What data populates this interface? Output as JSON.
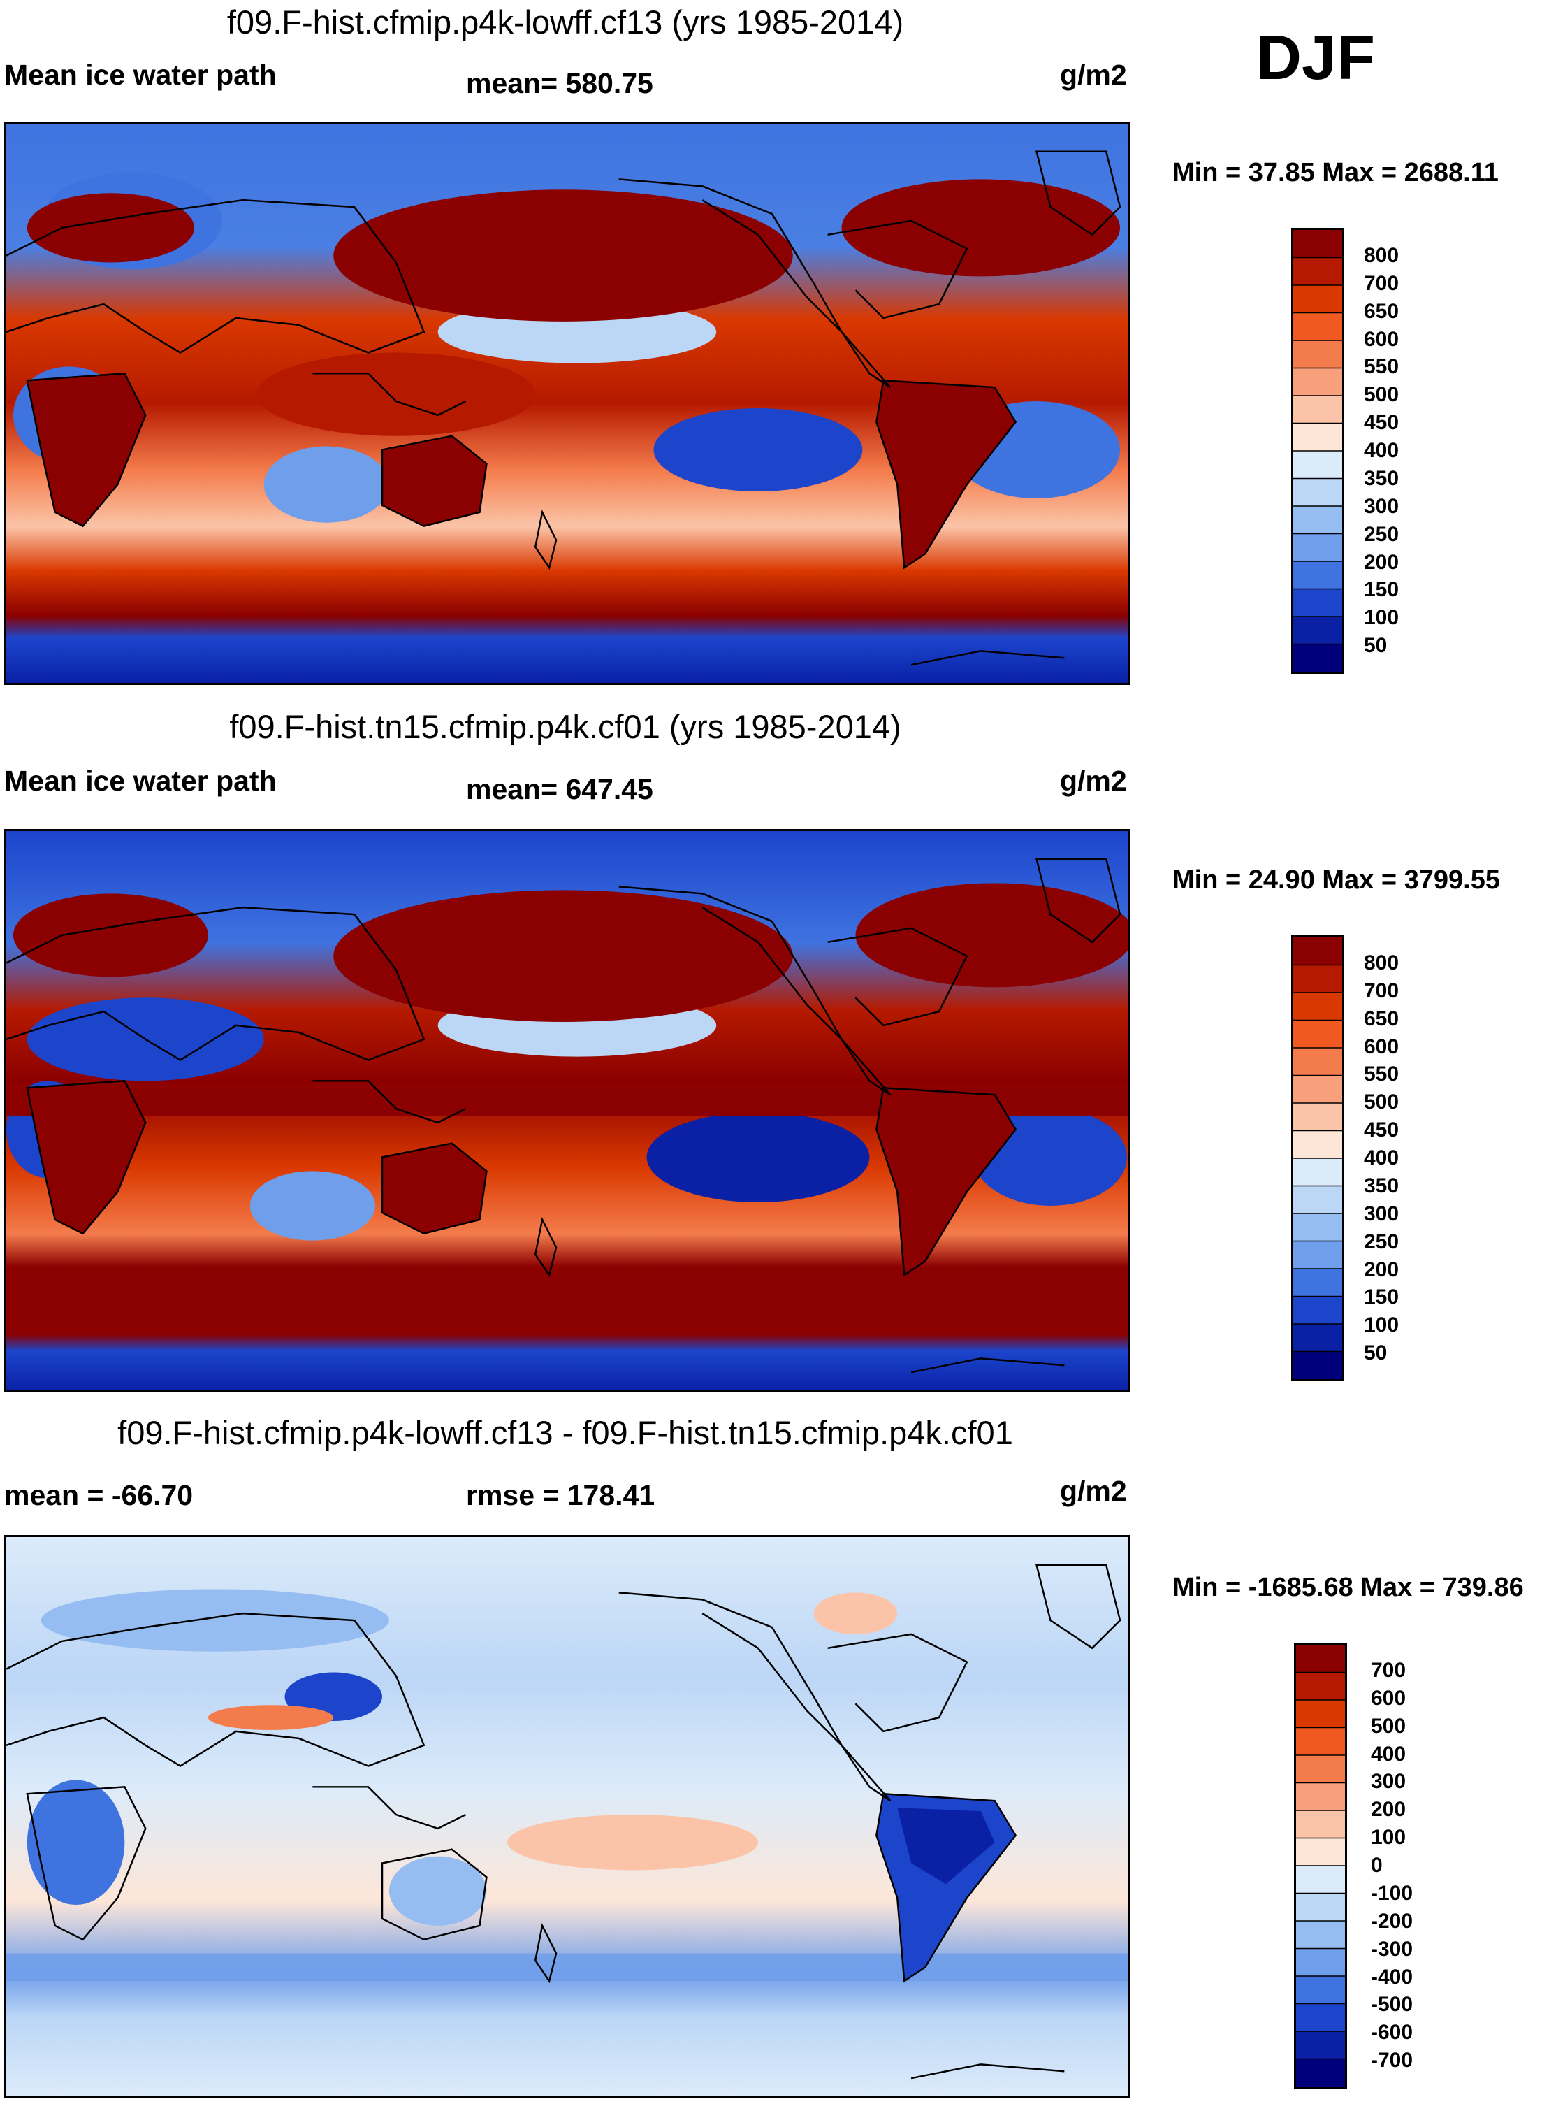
{
  "season": "DJF",
  "panels": [
    {
      "title": "f09.F-hist.cfmip.p4k-lowff.cf13 (yrs 1985-2014)",
      "left_label": "Mean ice water path",
      "center_label": "mean= 580.75",
      "units": "g/m2",
      "minmax": "Min =  37.85 Max = 2688.11"
    },
    {
      "title": "f09.F-hist.tn15.cfmip.p4k.cf01 (yrs 1985-2014)",
      "left_label": "Mean ice water path",
      "center_label": "mean= 647.45",
      "units": "g/m2",
      "minmax": "Min =  24.90 Max = 3799.55"
    },
    {
      "title": "f09.F-hist.cfmip.p4k-lowff.cf13 - f09.F-hist.tn15.cfmip.p4k.cf01",
      "left_label": "mean = -66.70",
      "center_label": "rmse = 178.41",
      "units": "g/m2",
      "minmax": "Min = -1685.68 Max = 739.86"
    }
  ],
  "chart_data": [
    {
      "type": "heatmap",
      "title": "f09.F-hist.cfmip.p4k-lowff.cf13 (yrs 1985-2014)",
      "variable": "Mean ice water path",
      "units": "g/m2",
      "mean": 580.75,
      "min": 37.85,
      "max": 2688.11,
      "colorbar_levels": [
        800,
        700,
        650,
        600,
        550,
        500,
        450,
        400,
        350,
        300,
        250,
        200,
        150,
        100,
        50
      ],
      "colorbar_colors": [
        "#8b0000",
        "#b51a00",
        "#d93800",
        "#f05a22",
        "#f47c4c",
        "#f8a07c",
        "#fbc4a8",
        "#fde6d8",
        "#dcebfa",
        "#bcd6f6",
        "#95bdf1",
        "#6f9eea",
        "#3f73e0",
        "#1c45cc",
        "#0a21a6",
        "#00007d"
      ]
    },
    {
      "type": "heatmap",
      "title": "f09.F-hist.tn15.cfmip.p4k.cf01 (yrs 1985-2014)",
      "variable": "Mean ice water path",
      "units": "g/m2",
      "mean": 647.45,
      "min": 24.9,
      "max": 3799.55,
      "colorbar_levels": [
        800,
        700,
        650,
        600,
        550,
        500,
        450,
        400,
        350,
        300,
        250,
        200,
        150,
        100,
        50
      ],
      "colorbar_colors": [
        "#8b0000",
        "#b51a00",
        "#d93800",
        "#f05a22",
        "#f47c4c",
        "#f8a07c",
        "#fbc4a8",
        "#fde6d8",
        "#dcebfa",
        "#bcd6f6",
        "#95bdf1",
        "#6f9eea",
        "#3f73e0",
        "#1c45cc",
        "#0a21a6",
        "#00007d"
      ]
    },
    {
      "type": "heatmap",
      "title": "f09.F-hist.cfmip.p4k-lowff.cf13 - f09.F-hist.tn15.cfmip.p4k.cf01",
      "units": "g/m2",
      "mean": -66.7,
      "rmse": 178.41,
      "min": -1685.68,
      "max": 739.86,
      "colorbar_levels": [
        700,
        600,
        500,
        400,
        300,
        200,
        100,
        0,
        -100,
        -200,
        -300,
        -400,
        -500,
        -600,
        -700
      ],
      "colorbar_colors": [
        "#8b0000",
        "#b51a00",
        "#d93800",
        "#f05a22",
        "#f47c4c",
        "#f8a07c",
        "#fbc4a8",
        "#fde6d8",
        "#dcebfa",
        "#bcd6f6",
        "#95bdf1",
        "#6f9eea",
        "#3f73e0",
        "#1c45cc",
        "#0a21a6",
        "#00007d"
      ]
    }
  ]
}
